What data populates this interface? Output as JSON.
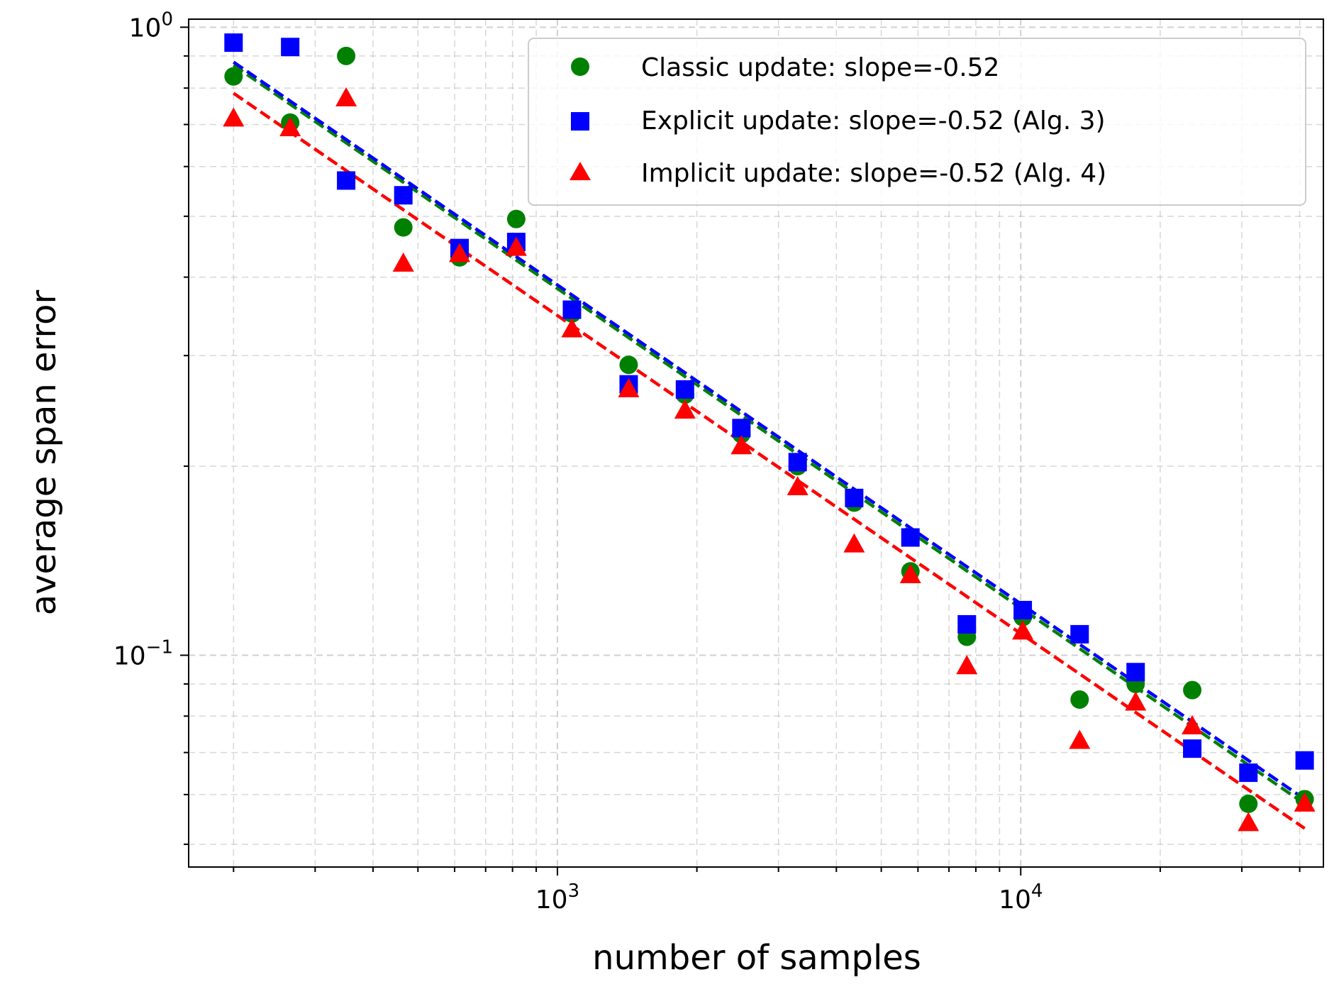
{
  "chart_data": {
    "type": "scatter",
    "title": "",
    "xlabel": "number of samples",
    "ylabel": "average span error",
    "xscale": "log",
    "yscale": "log",
    "xlim": [
      160,
      45000
    ],
    "ylim": [
      0.046,
      1.03
    ],
    "grid": true,
    "legend_position": "top-right",
    "x_major_ticks": [
      {
        "value": 1000,
        "base": "10",
        "exp": "3"
      },
      {
        "value": 10000,
        "base": "10",
        "exp": "4"
      }
    ],
    "y_major_ticks": [
      {
        "value": 1,
        "base": "10",
        "exp": "0"
      },
      {
        "value": 0.1,
        "base": "10",
        "exp": "−1"
      }
    ],
    "x": [
      200,
      265,
      350,
      465,
      615,
      815,
      1075,
      1425,
      1885,
      2495,
      3300,
      4370,
      5780,
      7650,
      10100,
      13400,
      17700,
      23450,
      31000,
      41000
    ],
    "series": [
      {
        "name": "Classic update: slope=-0.52",
        "marker": "circle",
        "color": "#008000",
        "values": [
          0.835,
          0.705,
          0.9,
          0.48,
          0.43,
          0.495,
          0.35,
          0.29,
          0.26,
          0.225,
          0.2,
          0.175,
          0.136,
          0.107,
          0.115,
          0.085,
          0.09,
          0.088,
          0.058,
          0.059
        ],
        "fit": [
          0.87,
          0.058
        ]
      },
      {
        "name": "Explicit update: slope=-0.52 (Alg. 3)",
        "marker": "square",
        "color": "#0000ff",
        "values": [
          0.945,
          0.93,
          0.57,
          0.54,
          0.445,
          0.455,
          0.355,
          0.27,
          0.265,
          0.23,
          0.203,
          0.178,
          0.154,
          0.112,
          0.118,
          0.108,
          0.094,
          0.071,
          0.065,
          0.068
        ],
        "fit": [
          0.88,
          0.059
        ]
      },
      {
        "name": "Implicit update: slope=-0.52 (Alg. 4)",
        "marker": "triangle",
        "color": "#ff0000",
        "values": [
          0.715,
          0.69,
          0.77,
          0.42,
          0.435,
          0.445,
          0.33,
          0.265,
          0.245,
          0.215,
          0.185,
          0.15,
          0.134,
          0.096,
          0.109,
          0.073,
          0.084,
          0.077,
          0.054,
          0.058
        ],
        "fit": [
          0.785,
          0.053
        ]
      }
    ]
  }
}
